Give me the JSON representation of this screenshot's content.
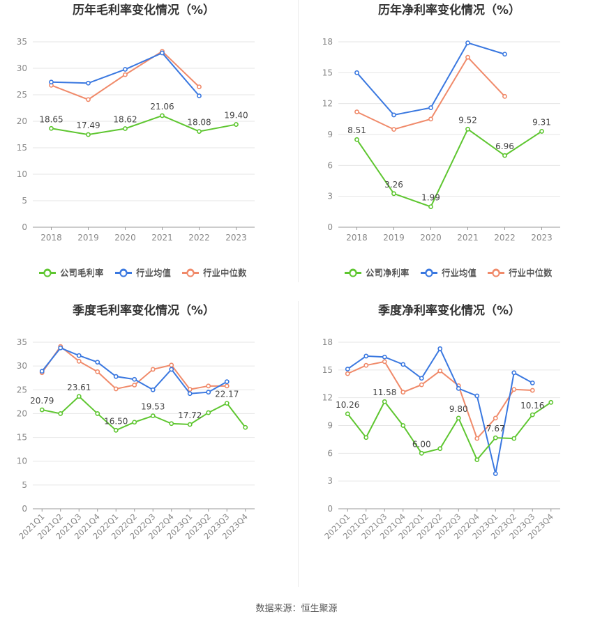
{
  "source_text": "数据来源：恒生聚源",
  "colors": {
    "company": "#5ec630",
    "industry_avg": "#3a78e0",
    "industry_median": "#f08a6a",
    "grid": "#e6e6e6",
    "axis_text": "#888888",
    "title": "#333333",
    "label": "#444444"
  },
  "chart_data": [
    {
      "type": "line",
      "title": "历年毛利率变化情况（%）",
      "categories": [
        "2018",
        "2019",
        "2020",
        "2021",
        "2022",
        "2023"
      ],
      "ylim": [
        0,
        35
      ],
      "yticks": [
        0,
        5,
        10,
        15,
        20,
        25,
        30,
        35
      ],
      "grid": true,
      "legend_position": "bottom",
      "rotate_labels": false,
      "series": [
        {
          "name": "公司毛利率",
          "key": "company",
          "values": [
            18.65,
            17.49,
            18.62,
            21.06,
            18.08,
            19.4
          ],
          "labels": [
            "18.65",
            "17.49",
            "18.62",
            "21.06",
            "18.08",
            "19.40"
          ]
        },
        {
          "name": "行业均值",
          "key": "industry_avg",
          "values": [
            27.4,
            27.2,
            29.8,
            32.9,
            24.8,
            null
          ]
        },
        {
          "name": "行业中位数",
          "key": "industry_median",
          "values": [
            26.8,
            24.1,
            28.8,
            33.2,
            26.5,
            null
          ]
        }
      ]
    },
    {
      "type": "line",
      "title": "历年净利率变化情况（%）",
      "categories": [
        "2018",
        "2019",
        "2020",
        "2021",
        "2022",
        "2023"
      ],
      "ylim": [
        0,
        18
      ],
      "yticks": [
        0,
        3,
        6,
        9,
        12,
        15,
        18
      ],
      "grid": true,
      "legend_position": "bottom",
      "rotate_labels": false,
      "series": [
        {
          "name": "公司净利率",
          "key": "company",
          "values": [
            8.51,
            3.26,
            1.99,
            9.52,
            6.96,
            9.31
          ],
          "labels": [
            "8.51",
            "3.26",
            "1.99",
            "9.52",
            "6.96",
            "9.31"
          ]
        },
        {
          "name": "行业均值",
          "key": "industry_avg",
          "values": [
            15.0,
            10.9,
            11.6,
            17.9,
            16.8,
            null
          ]
        },
        {
          "name": "行业中位数",
          "key": "industry_median",
          "values": [
            11.2,
            9.5,
            10.5,
            16.5,
            12.7,
            null
          ]
        }
      ]
    },
    {
      "type": "line",
      "title": "季度毛利率变化情况（%）",
      "categories": [
        "2021Q1",
        "2021Q2",
        "2021Q3",
        "2021Q4",
        "2022Q1",
        "2022Q2",
        "2022Q3",
        "2022Q4",
        "2023Q1",
        "2023Q2",
        "2023Q3",
        "2023Q4"
      ],
      "ylim": [
        0,
        35
      ],
      "yticks": [
        0,
        5,
        10,
        15,
        20,
        25,
        30,
        35
      ],
      "grid": true,
      "legend_position": "bottom",
      "rotate_labels": true,
      "series": [
        {
          "name": "公司毛利率",
          "key": "company",
          "values": [
            20.79,
            20.0,
            23.61,
            20.0,
            16.5,
            18.2,
            19.53,
            17.9,
            17.72,
            20.2,
            22.17,
            17.1
          ],
          "labels": [
            "20.79",
            "",
            "23.61",
            "",
            "16.50",
            "",
            "19.53",
            "",
            "17.72",
            "",
            "22.17",
            ""
          ]
        },
        {
          "name": "行业均值",
          "key": "industry_avg",
          "values": [
            28.9,
            33.8,
            32.2,
            30.8,
            27.8,
            27.2,
            25.0,
            29.3,
            24.2,
            24.5,
            26.7,
            null
          ]
        },
        {
          "name": "行业中位数",
          "key": "industry_median",
          "values": [
            28.6,
            34.1,
            31.0,
            28.8,
            25.2,
            26.0,
            29.3,
            30.2,
            25.1,
            25.8,
            25.8,
            null
          ]
        }
      ]
    },
    {
      "type": "line",
      "title": "季度净利率变化情况（%）",
      "categories": [
        "2021Q1",
        "2021Q2",
        "2021Q3",
        "2021Q4",
        "2022Q1",
        "2022Q2",
        "2022Q3",
        "2022Q4",
        "2023Q1",
        "2023Q2",
        "2023Q3",
        "2023Q4"
      ],
      "ylim": [
        0,
        18
      ],
      "yticks": [
        0,
        3,
        6,
        9,
        12,
        15,
        18
      ],
      "grid": true,
      "legend_position": "bottom",
      "rotate_labels": true,
      "series": [
        {
          "name": "公司净利率",
          "key": "company",
          "values": [
            10.26,
            7.7,
            11.58,
            9.0,
            6.0,
            6.5,
            9.8,
            5.3,
            7.67,
            7.6,
            10.16,
            11.5
          ],
          "labels": [
            "10.26",
            "",
            "11.58",
            "",
            "6.00",
            "",
            "9.80",
            "",
            "7.67",
            "",
            "10.16",
            ""
          ]
        },
        {
          "name": "行业均值",
          "key": "industry_avg",
          "values": [
            15.1,
            16.5,
            16.4,
            15.6,
            14.1,
            17.3,
            13.0,
            12.2,
            3.8,
            14.7,
            13.6,
            null
          ]
        },
        {
          "name": "行业中位数",
          "key": "industry_median",
          "values": [
            14.6,
            15.5,
            15.9,
            12.6,
            13.4,
            14.9,
            13.3,
            7.6,
            9.8,
            12.9,
            12.8,
            null
          ]
        }
      ]
    }
  ]
}
